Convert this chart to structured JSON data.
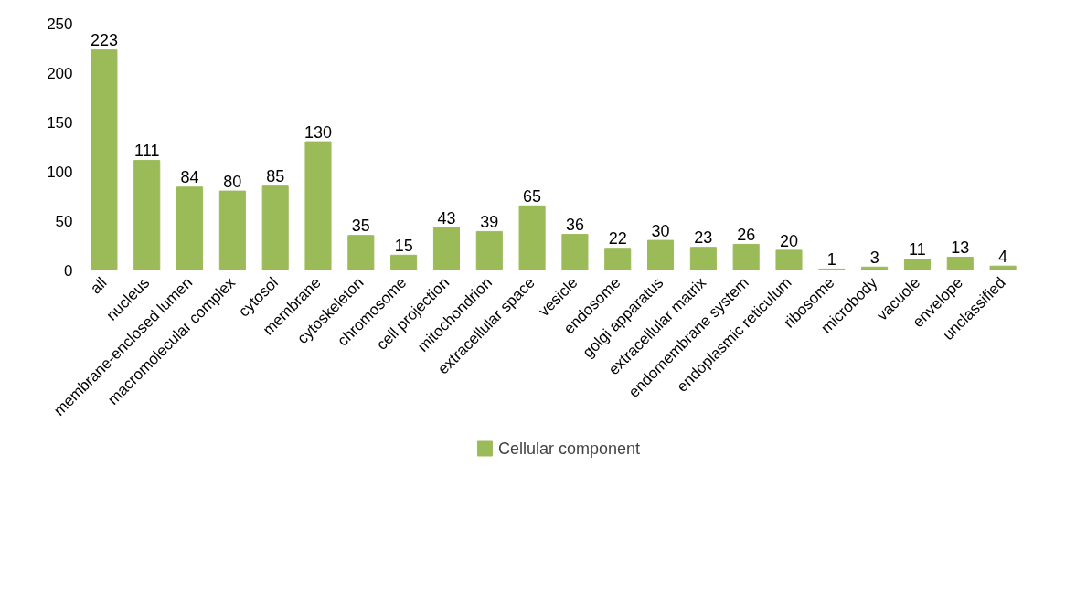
{
  "chart_data": {
    "type": "bar",
    "categories": [
      "all",
      "nucleus",
      "membrane-enclosed lumen",
      "macromolecular complex",
      "cytosol",
      "membrane",
      "cytoskeleton",
      "chromosome",
      "cell projection",
      "mitochondrion",
      "extracellular space",
      "vesicle",
      "endosome",
      "golgi apparatus",
      "extracellular matrix",
      "endomembrane system",
      "endoplasmic reticulum",
      "ribosome",
      "microbody",
      "vacuole",
      "envelope",
      "unclassified"
    ],
    "series": [
      {
        "name": "Cellular component",
        "color": "#9bbb59",
        "values": [
          223,
          111,
          84,
          80,
          85,
          130,
          35,
          15,
          43,
          39,
          65,
          36,
          22,
          30,
          23,
          26,
          20,
          1,
          3,
          11,
          13,
          4
        ]
      }
    ],
    "ylim": [
      0,
      250
    ],
    "yticks": [
      0,
      50,
      100,
      150,
      200,
      250
    ],
    "grid": false,
    "legend": "bottom",
    "data_labels": true
  }
}
